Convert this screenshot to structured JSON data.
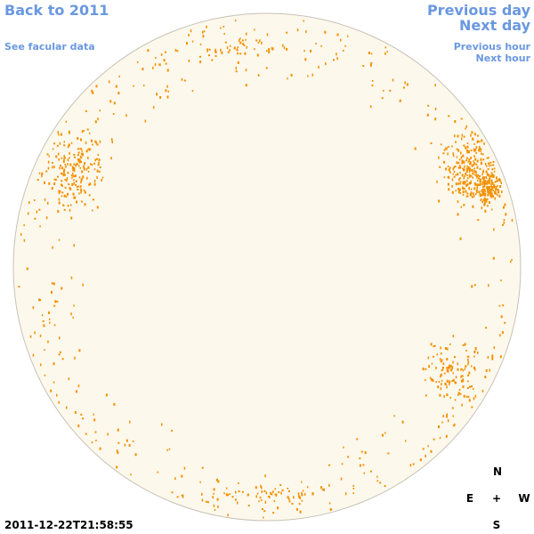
{
  "navigation": {
    "back": "Back to 2011",
    "facular_data": "See facular data",
    "previous_day": "Previous day",
    "next_day": "Next day",
    "previous_hour": "Previous hour",
    "next_hour": "Next hour"
  },
  "timestamp": "2011-12-22T21:58:55",
  "compass": {
    "north": "N",
    "east": "E",
    "center": "+",
    "west": "W",
    "south": "S"
  }
}
